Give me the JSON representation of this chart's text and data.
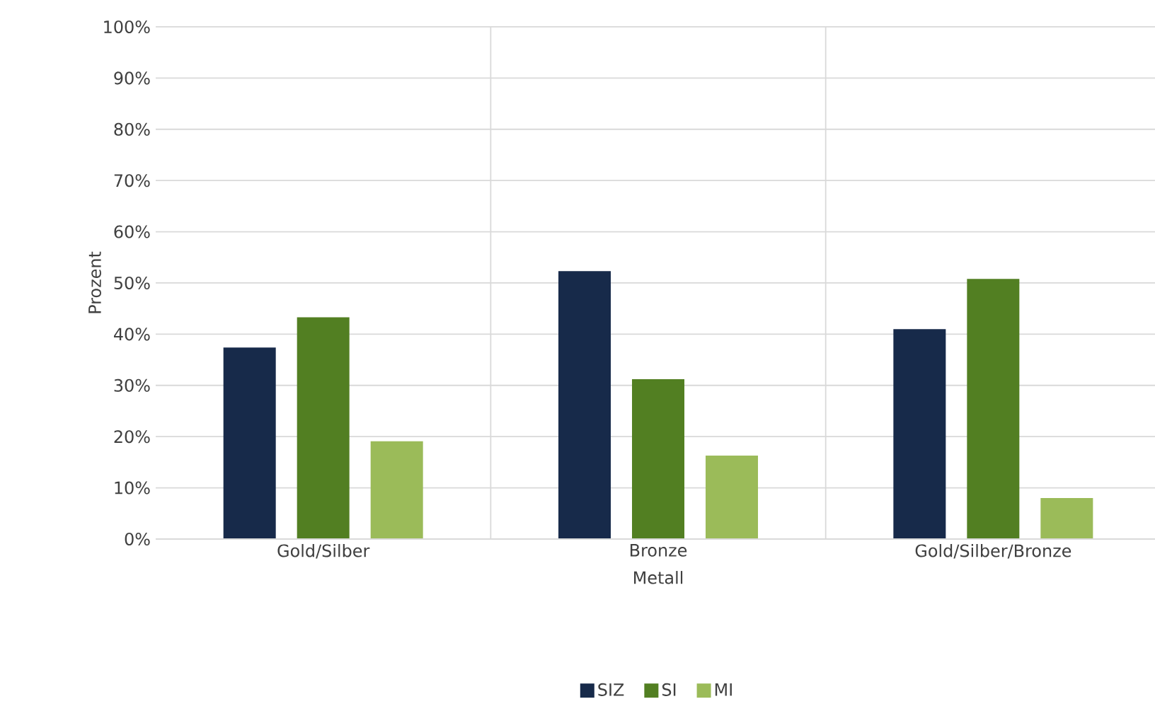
{
  "chart_data": {
    "type": "bar",
    "xlabel": "Metall",
    "ylabel": "Prozent",
    "categories": [
      "Gold/Silber",
      "Bronze",
      "Gold/Silber/Bronze"
    ],
    "series": [
      {
        "name": "SIZ",
        "color": "#172a4a",
        "values": [
          37.4,
          52.3,
          41.0
        ]
      },
      {
        "name": "SI",
        "color": "#527f22",
        "values": [
          43.3,
          31.2,
          50.8
        ]
      },
      {
        "name": "MI",
        "color": "#9bbb59",
        "values": [
          19.1,
          16.3,
          8.0
        ]
      }
    ],
    "ylim": [
      0,
      100
    ],
    "yticks": [
      {
        "value": 0,
        "label": "0%"
      },
      {
        "value": 10,
        "label": "10%"
      },
      {
        "value": 20,
        "label": "20%"
      },
      {
        "value": 30,
        "label": "30%"
      },
      {
        "value": 40,
        "label": "40%"
      },
      {
        "value": 50,
        "label": "50%"
      },
      {
        "value": 60,
        "label": "60%"
      },
      {
        "value": 70,
        "label": "70%"
      },
      {
        "value": 80,
        "label": "80%"
      },
      {
        "value": 90,
        "label": "90%"
      },
      {
        "value": 100,
        "label": "100%"
      }
    ],
    "grid": true,
    "legend": "bottom"
  }
}
